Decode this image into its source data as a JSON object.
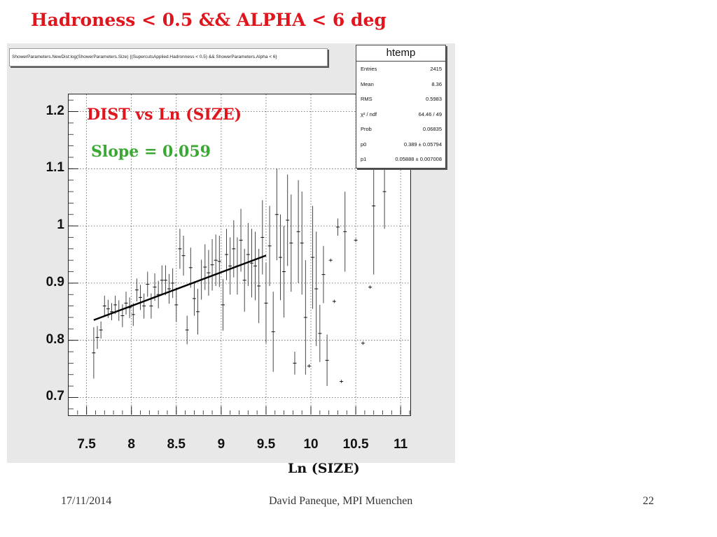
{
  "slide": {
    "title": "Hadroness < 0.5 && ALPHA < 6 deg",
    "footer_date": "17/11/2014",
    "footer_author": "David Paneque, MPI Muenchen",
    "page_number": "22"
  },
  "plot_command": "ShowerParameters.NewDist:log(ShowerParameters.Size) {(SupercutsApplied.Hadronness < 0.5) && ShowerParameters.Alpha < 6}",
  "stats_box": {
    "title": "htemp",
    "rows": [
      {
        "key": "Entries",
        "value": "2415"
      },
      {
        "key": "Mean",
        "value": "8.36"
      },
      {
        "key": "RMS",
        "value": "0.5983"
      },
      {
        "key": "χ² / ndf",
        "value": "64.46 / 49"
      },
      {
        "key": "Prob",
        "value": "0.06835"
      },
      {
        "key": "p0",
        "value": "0.389 ± 0.05794"
      },
      {
        "key": "p1",
        "value": "0.05888 ± 0.007008"
      }
    ]
  },
  "annotations": {
    "dist": "DIST vs Ln (SIZE)",
    "slope": "Slope = 0.059",
    "dist_color": "#e0161e",
    "slope_color": "#3aa832"
  },
  "chart_data": {
    "type": "scatter",
    "xlabel": "Ln (SIZE)",
    "ylabel": "",
    "xlim": [
      7.3,
      11.1
    ],
    "ylim": [
      0.67,
      1.23
    ],
    "xticks": [
      "7.5",
      "8",
      "8.5",
      "9",
      "9.5",
      "10",
      "10.5",
      "11"
    ],
    "yticks": [
      "0.7",
      "0.8",
      "0.9",
      "1",
      "1.1",
      "1.2"
    ],
    "grid": true,
    "points": [
      {
        "x": 7.58,
        "y": 0.778,
        "err": 0.045
      },
      {
        "x": 7.62,
        "y": 0.805,
        "err": 0.02
      },
      {
        "x": 7.66,
        "y": 0.818,
        "err": 0.015
      },
      {
        "x": 7.7,
        "y": 0.86,
        "err": 0.018
      },
      {
        "x": 7.74,
        "y": 0.855,
        "err": 0.016
      },
      {
        "x": 7.78,
        "y": 0.85,
        "err": 0.015
      },
      {
        "x": 7.82,
        "y": 0.862,
        "err": 0.016
      },
      {
        "x": 7.86,
        "y": 0.852,
        "err": 0.018
      },
      {
        "x": 7.9,
        "y": 0.843,
        "err": 0.02
      },
      {
        "x": 7.94,
        "y": 0.865,
        "err": 0.02
      },
      {
        "x": 7.98,
        "y": 0.857,
        "err": 0.018
      },
      {
        "x": 8.02,
        "y": 0.845,
        "err": 0.02
      },
      {
        "x": 8.06,
        "y": 0.888,
        "err": 0.02
      },
      {
        "x": 8.1,
        "y": 0.875,
        "err": 0.022
      },
      {
        "x": 8.14,
        "y": 0.86,
        "err": 0.022
      },
      {
        "x": 8.18,
        "y": 0.898,
        "err": 0.022
      },
      {
        "x": 8.22,
        "y": 0.86,
        "err": 0.022
      },
      {
        "x": 8.26,
        "y": 0.893,
        "err": 0.024
      },
      {
        "x": 8.3,
        "y": 0.88,
        "err": 0.024
      },
      {
        "x": 8.34,
        "y": 0.905,
        "err": 0.026
      },
      {
        "x": 8.38,
        "y": 0.905,
        "err": 0.026
      },
      {
        "x": 8.42,
        "y": 0.89,
        "err": 0.026
      },
      {
        "x": 8.46,
        "y": 0.9,
        "err": 0.026
      },
      {
        "x": 8.5,
        "y": 0.862,
        "err": 0.03
      },
      {
        "x": 8.54,
        "y": 0.96,
        "err": 0.035
      },
      {
        "x": 8.58,
        "y": 0.948,
        "err": 0.035
      },
      {
        "x": 8.62,
        "y": 0.818,
        "err": 0.025
      },
      {
        "x": 8.66,
        "y": 0.927,
        "err": 0.035
      },
      {
        "x": 8.7,
        "y": 0.873,
        "err": 0.03
      },
      {
        "x": 8.74,
        "y": 0.85,
        "err": 0.04
      },
      {
        "x": 8.78,
        "y": 0.906,
        "err": 0.035
      },
      {
        "x": 8.82,
        "y": 0.928,
        "err": 0.04
      },
      {
        "x": 8.86,
        "y": 0.918,
        "err": 0.04
      },
      {
        "x": 8.9,
        "y": 0.932,
        "err": 0.045
      },
      {
        "x": 8.94,
        "y": 0.94,
        "err": 0.045
      },
      {
        "x": 8.98,
        "y": 0.938,
        "err": 0.045
      },
      {
        "x": 9.02,
        "y": 0.862,
        "err": 0.045
      },
      {
        "x": 9.06,
        "y": 0.95,
        "err": 0.045
      },
      {
        "x": 9.1,
        "y": 0.93,
        "err": 0.05
      },
      {
        "x": 9.14,
        "y": 0.96,
        "err": 0.05
      },
      {
        "x": 9.18,
        "y": 0.93,
        "err": 0.05
      },
      {
        "x": 9.22,
        "y": 0.975,
        "err": 0.055
      },
      {
        "x": 9.26,
        "y": 0.905,
        "err": 0.055
      },
      {
        "x": 9.3,
        "y": 0.95,
        "err": 0.055
      },
      {
        "x": 9.34,
        "y": 0.935,
        "err": 0.06
      },
      {
        "x": 9.38,
        "y": 0.93,
        "err": 0.06
      },
      {
        "x": 9.42,
        "y": 0.895,
        "err": 0.065
      },
      {
        "x": 9.46,
        "y": 0.98,
        "err": 0.065
      },
      {
        "x": 9.5,
        "y": 0.865,
        "err": 0.07
      },
      {
        "x": 9.54,
        "y": 0.965,
        "err": 0.07
      },
      {
        "x": 9.58,
        "y": 0.815,
        "err": 0.07
      },
      {
        "x": 9.62,
        "y": 1.02,
        "err": 0.08
      },
      {
        "x": 9.66,
        "y": 0.945,
        "err": 0.075
      },
      {
        "x": 9.7,
        "y": 0.92,
        "err": 0.08
      },
      {
        "x": 9.74,
        "y": 1.01,
        "err": 0.08
      },
      {
        "x": 9.78,
        "y": 0.97,
        "err": 0.085
      },
      {
        "x": 9.82,
        "y": 0.76,
        "err": 0.02
      },
      {
        "x": 9.86,
        "y": 0.99,
        "err": 0.09
      },
      {
        "x": 9.9,
        "y": 0.97,
        "err": 0.09
      },
      {
        "x": 9.94,
        "y": 0.84,
        "err": 0.1
      },
      {
        "x": 9.98,
        "y": 0.755,
        "err": 0.003
      },
      {
        "x": 10.02,
        "y": 0.945,
        "err": 0.09
      },
      {
        "x": 10.06,
        "y": 0.89,
        "err": 0.1
      },
      {
        "x": 10.1,
        "y": 0.812,
        "err": 0.05
      },
      {
        "x": 10.14,
        "y": 0.915,
        "err": 0.05
      },
      {
        "x": 10.18,
        "y": 0.765,
        "err": 0.045
      },
      {
        "x": 10.22,
        "y": 0.94,
        "err": 0.003
      },
      {
        "x": 10.26,
        "y": 0.868,
        "err": 0.003
      },
      {
        "x": 10.3,
        "y": 0.998,
        "err": 0.015
      },
      {
        "x": 10.34,
        "y": 0.728,
        "err": 0.003
      },
      {
        "x": 10.38,
        "y": 0.99,
        "err": 0.07
      },
      {
        "x": 10.5,
        "y": 0.975,
        "err": 0.003
      },
      {
        "x": 10.58,
        "y": 0.795,
        "err": 0.003
      },
      {
        "x": 10.66,
        "y": 0.893,
        "err": 0.003
      },
      {
        "x": 10.7,
        "y": 1.035,
        "err": 0.12
      },
      {
        "x": 10.82,
        "y": 1.06,
        "err": 0.065
      }
    ],
    "fit_line": {
      "x_start": 7.58,
      "x_end": 9.5,
      "p0": 0.389,
      "p1": 0.05888
    }
  }
}
